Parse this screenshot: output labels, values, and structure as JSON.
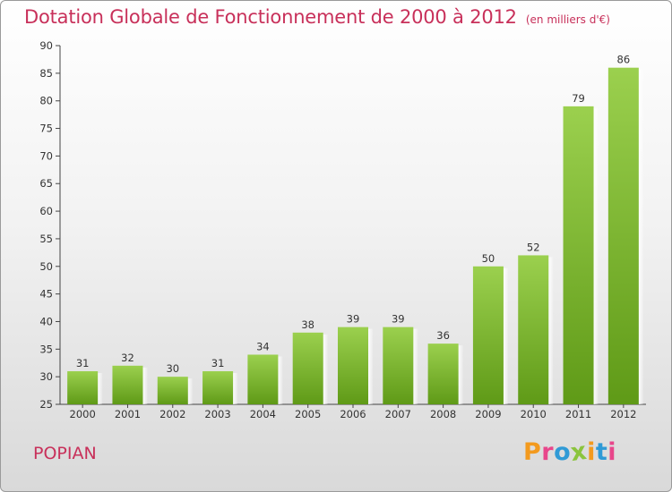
{
  "chart_data": {
    "type": "bar",
    "title": "Dotation Globale de Fonctionnement de 2000 à 2012",
    "subtitle": "(en milliers d'€)",
    "categories": [
      "2000",
      "2001",
      "2002",
      "2003",
      "2004",
      "2005",
      "2006",
      "2007",
      "2008",
      "2009",
      "2010",
      "2011",
      "2012"
    ],
    "values": [
      31,
      32,
      30,
      31,
      34,
      38,
      39,
      39,
      36,
      50,
      52,
      79,
      86
    ],
    "ylim": [
      25,
      90
    ],
    "yticks": [
      25,
      30,
      35,
      40,
      45,
      50,
      55,
      60,
      65,
      70,
      75,
      80,
      85,
      90
    ],
    "grid": false,
    "bar_color": "#7cb929"
  },
  "footer": {
    "commune": "POPIAN",
    "logo_letters": [
      "P",
      "r",
      "o",
      "x",
      "i",
      "t",
      "i"
    ],
    "logo_colors": [
      "#f39a1e",
      "#e8468b",
      "#2f9ad6",
      "#8bc43d",
      "#f39a1e",
      "#2f9ad6",
      "#e8468b"
    ]
  }
}
